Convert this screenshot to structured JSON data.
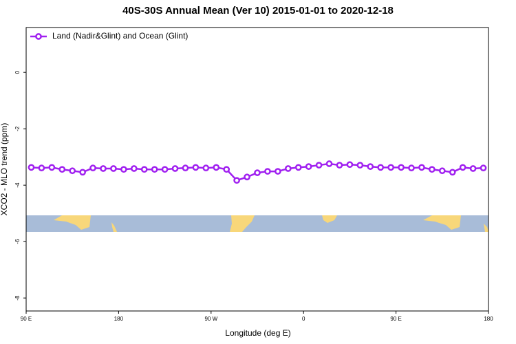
{
  "chart_data": {
    "type": "line",
    "title": "40S-30S Annual Mean (Ver 10)   2015-01-01 to 2020-12-18",
    "x_label": "Longitude (deg E)",
    "y_label": "XCO2 - MLO trend (ppm)",
    "x": [
      95,
      105,
      115,
      125,
      135,
      145,
      155,
      165,
      175,
      185,
      195,
      205,
      215,
      225,
      235,
      245,
      255,
      265,
      275,
      285,
      295,
      305,
      315,
      325,
      335,
      345,
      355,
      365,
      375,
      385,
      395,
      405,
      415,
      425,
      435,
      445,
      455,
      465,
      475,
      485,
      495,
      505,
      515,
      525,
      535
    ],
    "series": [
      {
        "name": "Land (Nadir&Glint) and Ocean (Glint)",
        "color": "#a020f0",
        "values": [
          -3.37,
          -3.39,
          -3.37,
          -3.44,
          -3.49,
          -3.54,
          -3.39,
          -3.41,
          -3.41,
          -3.44,
          -3.41,
          -3.44,
          -3.44,
          -3.44,
          -3.41,
          -3.39,
          -3.37,
          -3.39,
          -3.37,
          -3.44,
          -3.83,
          -3.71,
          -3.56,
          -3.51,
          -3.51,
          -3.41,
          -3.37,
          -3.34,
          -3.29,
          -3.24,
          -3.29,
          -3.27,
          -3.29,
          -3.34,
          -3.37,
          -3.37,
          -3.37,
          -3.39,
          -3.37,
          -3.44,
          -3.49,
          -3.54,
          -3.37,
          -3.41,
          -3.39
        ]
      }
    ],
    "xlim": [
      90,
      540
    ],
    "xticks": [
      {
        "value": 90,
        "label": "90 E"
      },
      {
        "value": 180,
        "label": "180"
      },
      {
        "value": 270,
        "label": "90 W"
      },
      {
        "value": 360,
        "label": "0"
      },
      {
        "value": 450,
        "label": "90 E"
      },
      {
        "value": 540,
        "label": "180"
      }
    ],
    "ylim": [
      -8.46,
      1.59
    ],
    "yticks": [
      0,
      -2,
      -4,
      -6,
      -8
    ],
    "legend": "top-left"
  }
}
